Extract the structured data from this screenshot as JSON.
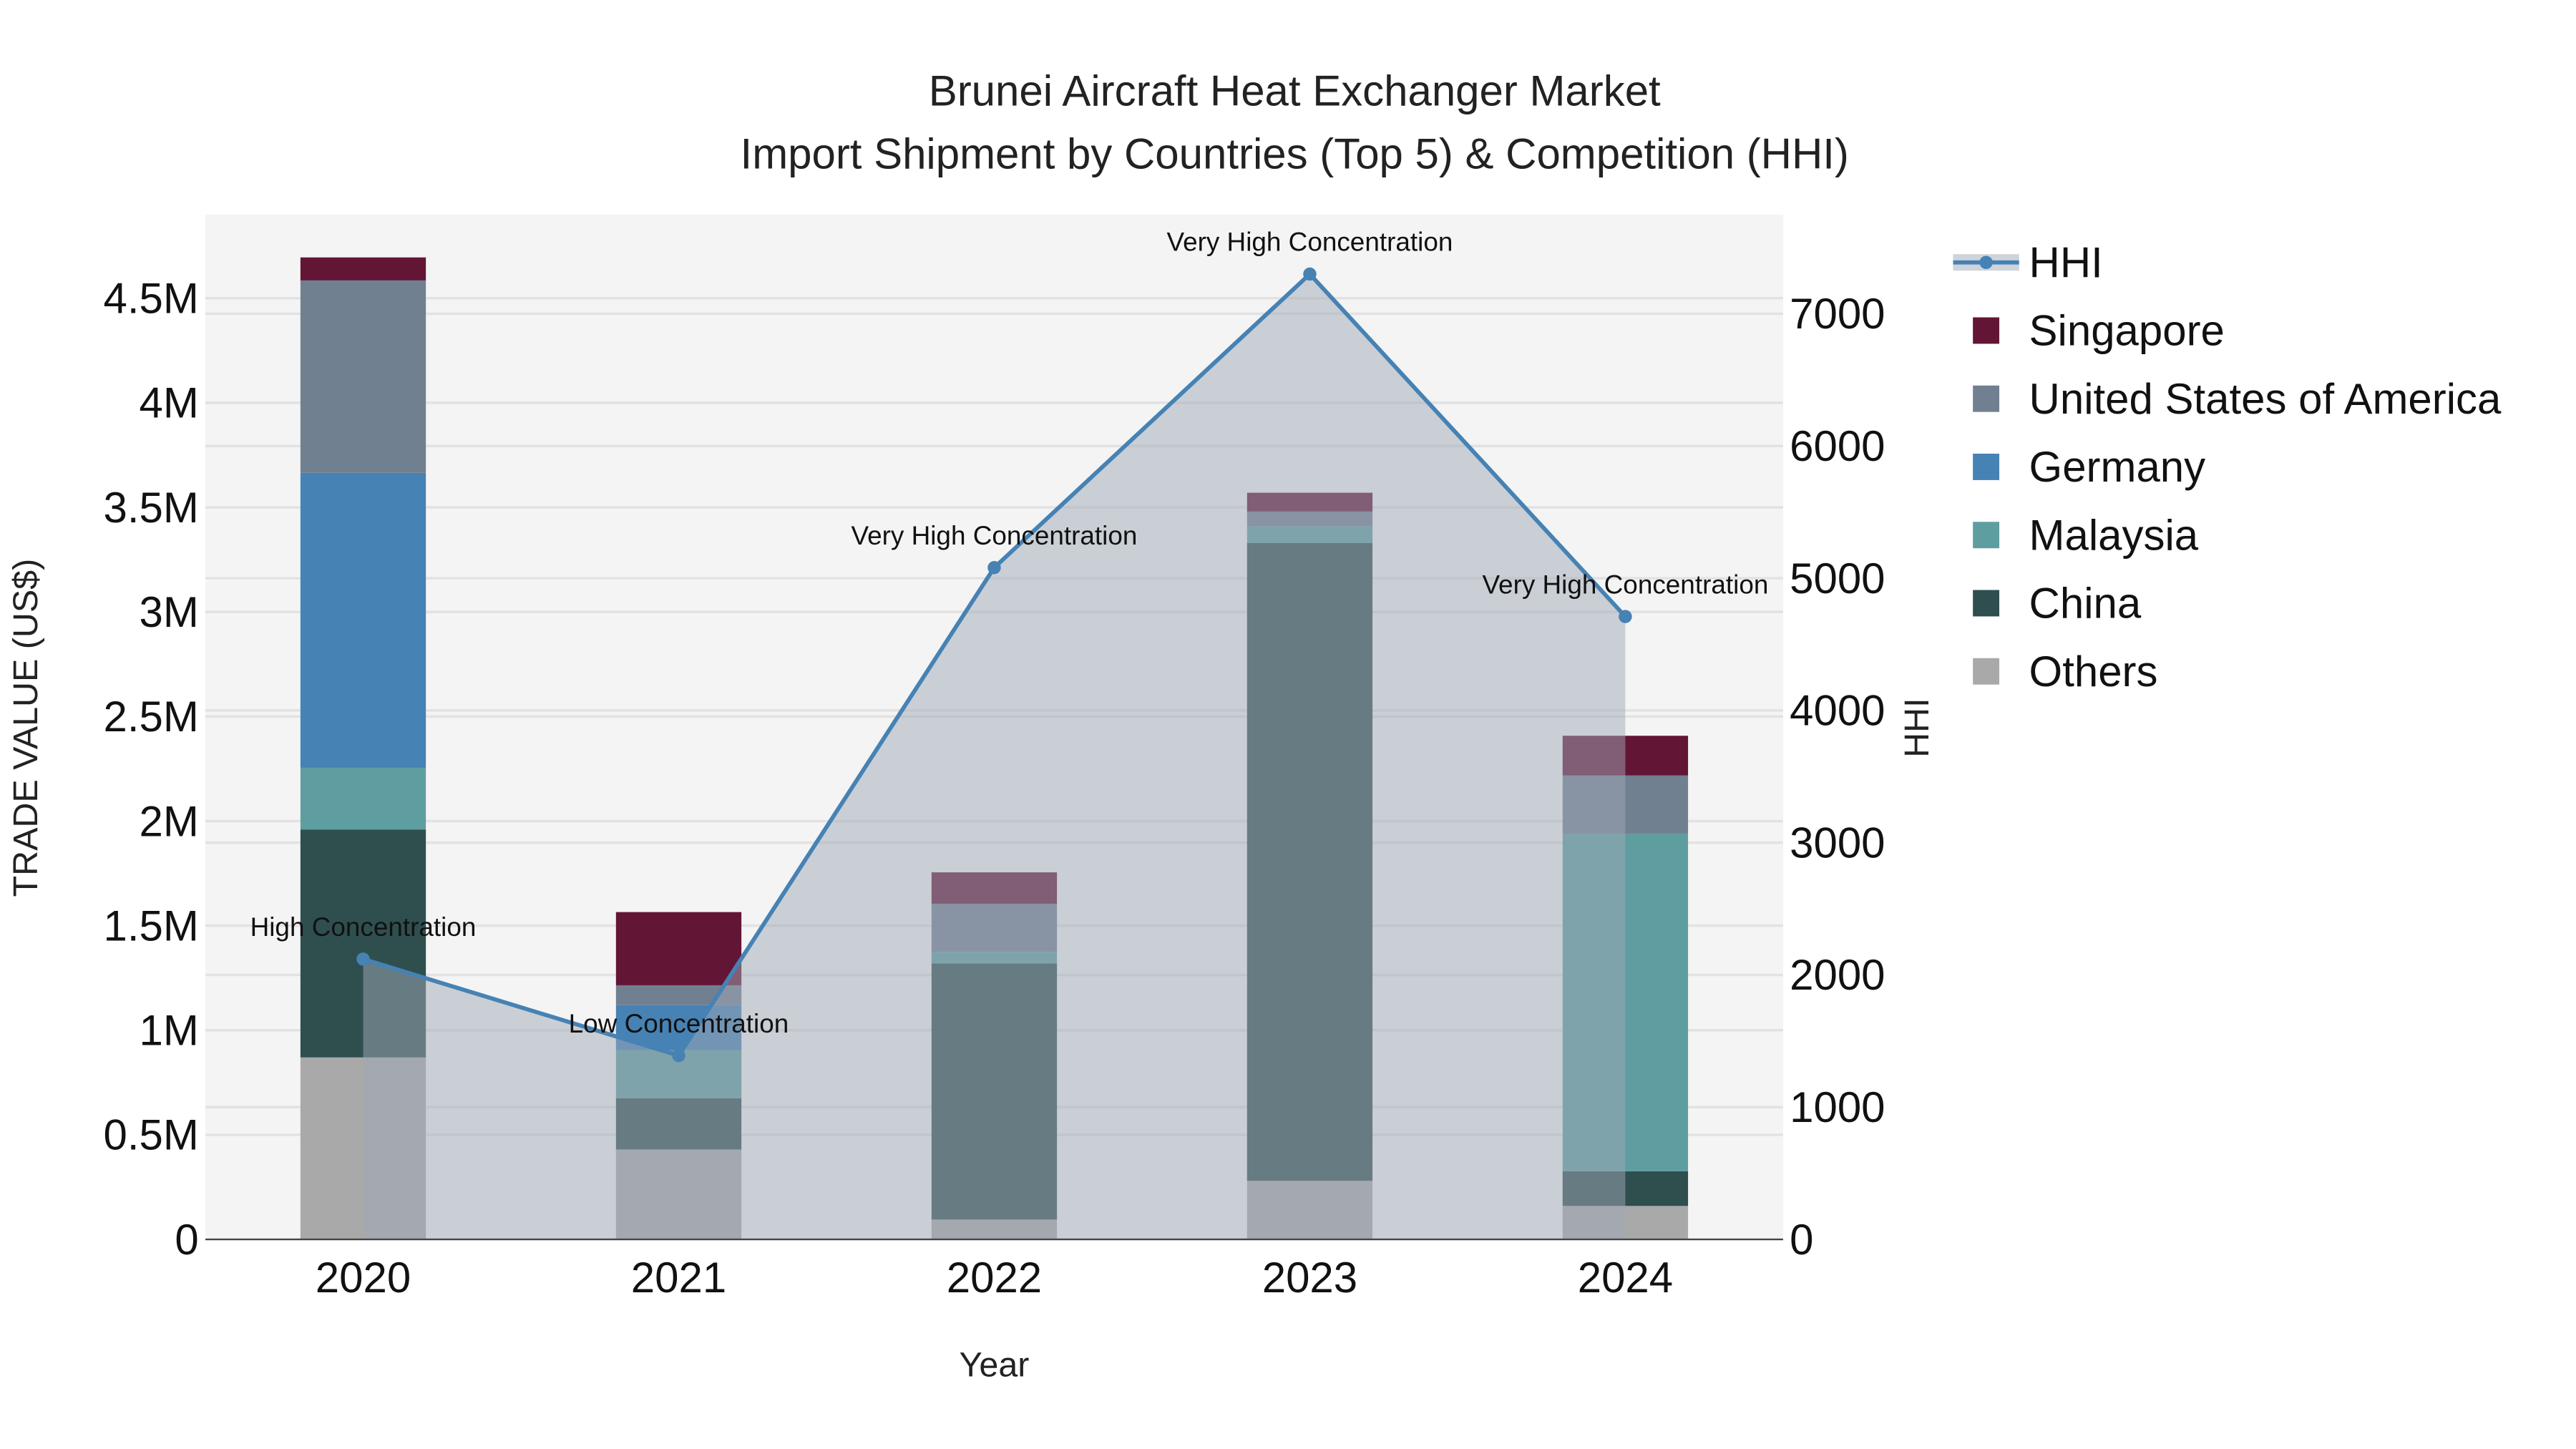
{
  "chart_data": {
    "type": "bar",
    "stacked": true,
    "title": "Brunei Aircraft Heat Exchanger Market",
    "subtitle": "Import Shipment by Countries (Top 5) & Competition (HHI)",
    "xlabel": "Year",
    "ylabel": "TRADE VALUE (US$)",
    "y2label": "HHI",
    "categories": [
      "2020",
      "2021",
      "2022",
      "2023",
      "2024"
    ],
    "ylim": [
      0,
      4900000
    ],
    "y2lim": [
      0,
      7750
    ],
    "yticks": [
      {
        "v": 0,
        "label": "0"
      },
      {
        "v": 500000,
        "label": "0.5M"
      },
      {
        "v": 1000000,
        "label": "1M"
      },
      {
        "v": 1500000,
        "label": "1.5M"
      },
      {
        "v": 2000000,
        "label": "2M"
      },
      {
        "v": 2500000,
        "label": "2.5M"
      },
      {
        "v": 3000000,
        "label": "3M"
      },
      {
        "v": 3500000,
        "label": "3.5M"
      },
      {
        "v": 4000000,
        "label": "4M"
      },
      {
        "v": 4500000,
        "label": "4.5M"
      }
    ],
    "y2ticks": [
      0,
      1000,
      2000,
      3000,
      4000,
      5000,
      6000,
      7000
    ],
    "grid": true,
    "legend_position": "right",
    "series": [
      {
        "name": "Others",
        "color": "#a9a9a9",
        "values": [
          870000,
          430000,
          95000,
          280000,
          160000
        ]
      },
      {
        "name": "China",
        "color": "#2f4f4f",
        "values": [
          1090000,
          245000,
          1225000,
          3050000,
          166000
        ]
      },
      {
        "name": "Malaysia",
        "color": "#5f9ea0",
        "values": [
          295000,
          230000,
          55000,
          80000,
          1614000
        ]
      },
      {
        "name": "Germany",
        "color": "#4682b4",
        "values": [
          1410000,
          215000,
          0,
          0,
          0
        ]
      },
      {
        "name": "United States of America",
        "color": "#708090",
        "values": [
          920000,
          95000,
          230000,
          70000,
          278000
        ]
      },
      {
        "name": "Singapore",
        "color": "#631535",
        "values": [
          110000,
          350000,
          150000,
          90000,
          190000
        ]
      }
    ],
    "hhi": {
      "name": "HHI",
      "color": "#4682b4",
      "values": [
        2120,
        1390,
        5080,
        7300,
        4710
      ],
      "annotations": [
        "High Concentration",
        "Low Concentration",
        "Very High Concentration",
        "Very High Concentration",
        "Very High Concentration"
      ]
    },
    "legend_order": [
      "HHI",
      "Singapore",
      "United States of America",
      "Germany",
      "Malaysia",
      "China",
      "Others"
    ]
  }
}
